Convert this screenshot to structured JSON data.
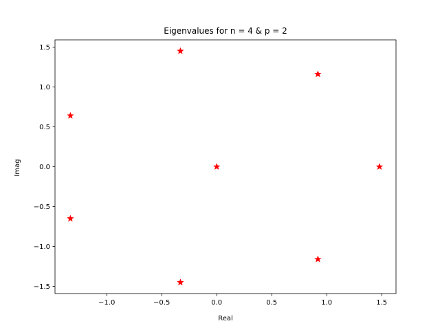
{
  "chart_data": {
    "type": "scatter",
    "title": "Eigenvalues for n = 4 & p = 2",
    "xlabel": "Real",
    "ylabel": "Imag",
    "xlim": [
      -1.47,
      1.63
    ],
    "ylim": [
      -1.59,
      1.59
    ],
    "xticks": [
      -1.0,
      -0.5,
      0.0,
      0.5,
      1.0,
      1.5
    ],
    "xtick_labels": [
      "−1.0",
      "−0.5",
      "0.0",
      "0.5",
      "1.0",
      "1.5"
    ],
    "yticks": [
      -1.5,
      -1.0,
      -0.5,
      0.0,
      0.5,
      1.0,
      1.5
    ],
    "ytick_labels": [
      "−1.5",
      "−1.0",
      "−0.5",
      "0.0",
      "0.5",
      "1.0",
      "1.5"
    ],
    "grid": false,
    "marker": "star",
    "marker_color": "#ff0000",
    "points": [
      {
        "x": -0.33,
        "y": 1.45
      },
      {
        "x": 0.92,
        "y": 1.16
      },
      {
        "x": -1.33,
        "y": 0.64
      },
      {
        "x": 0.0,
        "y": 0.0
      },
      {
        "x": 1.48,
        "y": 0.0
      },
      {
        "x": -1.33,
        "y": -0.65
      },
      {
        "x": 0.92,
        "y": -1.16
      },
      {
        "x": -0.33,
        "y": -1.45
      }
    ]
  }
}
